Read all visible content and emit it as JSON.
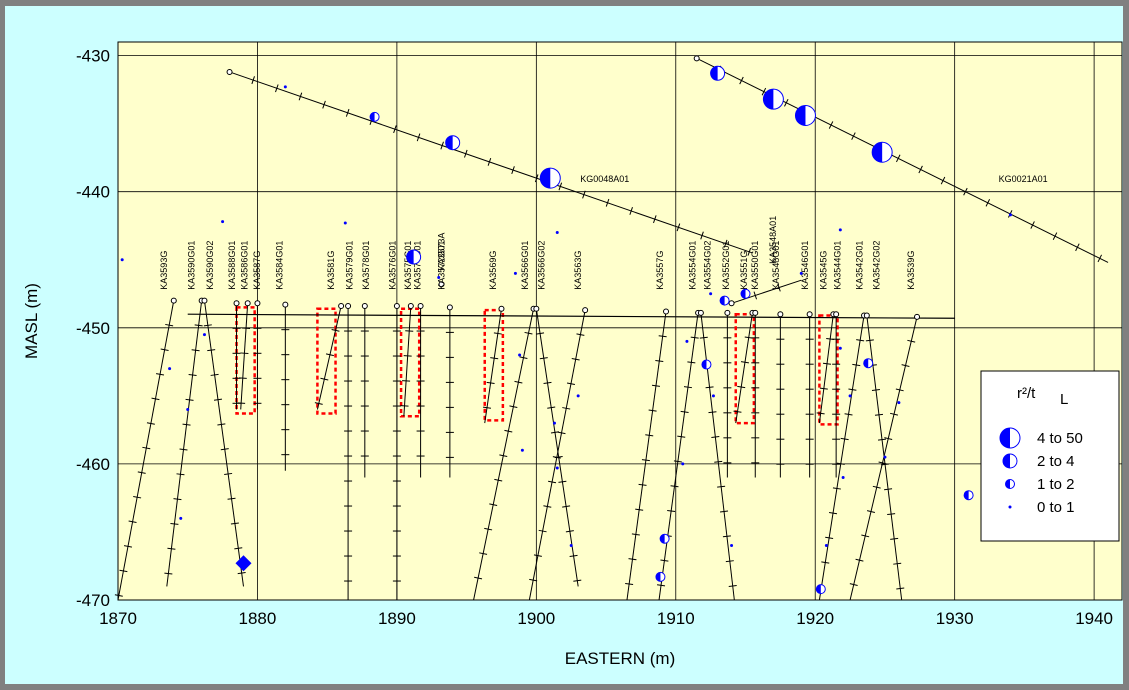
{
  "chart_data": {
    "type": "scatter",
    "title": "",
    "xlabel": "EASTERN (m)",
    "ylabel": "MASL (m)",
    "xlim": [
      1870,
      1942
    ],
    "ylim": [
      -470,
      -429
    ],
    "xticks": [
      1870,
      1880,
      1890,
      1900,
      1910,
      1920,
      1930,
      1940
    ],
    "yticks": [
      -430,
      -440,
      -450,
      -460,
      -470
    ],
    "grid": true,
    "plot_background": "#ffffcc",
    "frame_background": "#ccffff",
    "marker_color": "#0000ff",
    "legend": {
      "position": "right",
      "title": "r²/t",
      "title_unit": "L",
      "entries": [
        {
          "label": "4 to 50",
          "size": "largest"
        },
        {
          "label": "2 to 4",
          "size": "large"
        },
        {
          "label": "1 to 2",
          "size": "medium"
        },
        {
          "label": "0 to 1",
          "size": "small"
        }
      ]
    },
    "tunnel_lines": [
      {
        "start": [
          1875,
          -449
        ],
        "end": [
          1930,
          -449.3
        ]
      },
      {
        "start": [
          1880,
          -449
        ],
        "end": [
          1880,
          -449
        ]
      }
    ],
    "boreholes": [
      {
        "name": "KG0048A01",
        "start": [
          1878,
          -431.2
        ],
        "end": [
          1915.5,
          -444.5
        ],
        "label_at": [
          1901,
          -439
        ]
      },
      {
        "name": "KG0021A01",
        "start": [
          1911.5,
          -430.2
        ],
        "end": [
          1941,
          -445.2
        ],
        "label_at": [
          1931,
          -439
        ]
      },
      {
        "name": "KA3593G",
        "start": [
          1874,
          -448
        ],
        "end": [
          1870,
          -470
        ],
        "label_at": [
          1873.5,
          -447.2
        ]
      },
      {
        "name": "KA3590G01",
        "start": [
          1876,
          -448
        ],
        "end": [
          1873.5,
          -469
        ],
        "label_at": [
          1875.5,
          -447.2
        ]
      },
      {
        "name": "KA3590G02",
        "start": [
          1876.2,
          -448
        ],
        "end": [
          1879,
          -469
        ],
        "label_at": [
          1876.8,
          -447.2
        ]
      },
      {
        "name": "KA3588G01",
        "start": [
          1878.5,
          -448.2
        ],
        "end": [
          1878.5,
          -456
        ],
        "label_at": [
          1878.4,
          -447.2
        ]
      },
      {
        "name": "KA3586G01",
        "start": [
          1879.3,
          -448.2
        ],
        "end": [
          1878.8,
          -456
        ],
        "label_at": [
          1879.3,
          -447.2
        ]
      },
      {
        "name": "KA3587G",
        "start": [
          1880,
          -448.2
        ],
        "end": [
          1880,
          -456
        ],
        "label_at": [
          1880.2,
          -447.2
        ]
      },
      {
        "name": "KA3584G01",
        "start": [
          1882,
          -448.3
        ],
        "end": [
          1882,
          -460.5
        ],
        "label_at": [
          1881.8,
          -447.2
        ]
      },
      {
        "name": "KA3581G",
        "start": [
          1886,
          -448.4
        ],
        "end": [
          1884.3,
          -456
        ],
        "label_at": [
          1885.5,
          -447.2
        ]
      },
      {
        "name": "KA3579G01",
        "start": [
          1886.5,
          -448.4
        ],
        "end": [
          1886.5,
          -470
        ],
        "label_at": [
          1886.8,
          -447.2
        ]
      },
      {
        "name": "KA3578G01",
        "start": [
          1887.7,
          -448.4
        ],
        "end": [
          1887.7,
          -461
        ],
        "label_at": [
          1888,
          -447.2
        ]
      },
      {
        "name": "KA3576G01",
        "start": [
          1890,
          -448.4
        ],
        "end": [
          1890,
          -470
        ],
        "label_at": [
          1889.9,
          -447.2
        ]
      },
      {
        "name": "KA3575G01",
        "start": [
          1891,
          -448.4
        ],
        "end": [
          1890.5,
          -456.5
        ],
        "label_at": [
          1891,
          -447.2
        ]
      },
      {
        "name": "KA3574G01",
        "start": [
          1891.7,
          -448.4
        ],
        "end": [
          1891.7,
          -461
        ],
        "label_at": [
          1891.7,
          -447.2
        ]
      },
      {
        "name": "KA3573A",
        "start": [
          1893.2,
          -446.8
        ],
        "end": [
          1893.2,
          -446.8
        ],
        "label_at": [
          1893.4,
          -445.8
        ]
      },
      {
        "name": "KA3572G01",
        "start": [
          1893.8,
          -448.5
        ],
        "end": [
          1893.8,
          -461
        ],
        "label_at": [
          1893.4,
          -447.2
        ]
      },
      {
        "name": "KA3569G",
        "start": [
          1897.5,
          -448.6
        ],
        "end": [
          1896.3,
          -457
        ],
        "label_at": [
          1897.1,
          -447.2
        ]
      },
      {
        "name": "KA3566G01",
        "start": [
          1899.8,
          -448.6
        ],
        "end": [
          1895.5,
          -470
        ],
        "label_at": [
          1899.4,
          -447.2
        ]
      },
      {
        "name": "KA3566G02",
        "start": [
          1900,
          -448.6
        ],
        "end": [
          1903,
          -469
        ],
        "label_at": [
          1900.6,
          -447.2
        ]
      },
      {
        "name": "KA3563G",
        "start": [
          1903.5,
          -448.7
        ],
        "end": [
          1899.5,
          -470
        ],
        "label_at": [
          1903.2,
          -447.2
        ]
      },
      {
        "name": "KA3557G",
        "start": [
          1909.3,
          -448.8
        ],
        "end": [
          1906.5,
          -470
        ],
        "label_at": [
          1909.1,
          -447.2
        ]
      },
      {
        "name": "KA3554G01",
        "start": [
          1911.6,
          -448.9
        ],
        "end": [
          1908.8,
          -470
        ],
        "label_at": [
          1911.4,
          -447.2
        ]
      },
      {
        "name": "KA3554G02",
        "start": [
          1911.8,
          -448.9
        ],
        "end": [
          1914.2,
          -470
        ],
        "label_at": [
          1912.5,
          -447.2
        ]
      },
      {
        "name": "KA3552G01",
        "start": [
          1913.7,
          -448.9
        ],
        "end": [
          1913.7,
          -461
        ],
        "label_at": [
          1913.8,
          -447.2
        ]
      },
      {
        "name": "KA3551G",
        "start": [
          1915.5,
          -448.9
        ],
        "end": [
          1914.3,
          -457
        ],
        "label_at": [
          1915.1,
          -447.2
        ]
      },
      {
        "name": "KA3550G01",
        "start": [
          1915.7,
          -448.9
        ],
        "end": [
          1915.7,
          -461
        ],
        "label_at": [
          1915.9,
          -447.2
        ]
      },
      {
        "name": "KA3548A01",
        "start": [
          1914,
          -448.2
        ],
        "end": [
          1919,
          -446.5
        ],
        "label_at": [
          1917.2,
          -445.3
        ]
      },
      {
        "name": "KA3548G01",
        "start": [
          1917.5,
          -449
        ],
        "end": [
          1917.5,
          -461
        ],
        "label_at": [
          1917.4,
          -447.2
        ]
      },
      {
        "name": "KA3546G01",
        "start": [
          1919.6,
          -449
        ],
        "end": [
          1919.6,
          -461
        ],
        "label_at": [
          1919.5,
          -447.2
        ]
      },
      {
        "name": "KA3545G",
        "start": [
          1921.3,
          -449
        ],
        "end": [
          1920.3,
          -457
        ],
        "label_at": [
          1920.8,
          -447.2
        ]
      },
      {
        "name": "KA3544G01",
        "start": [
          1921.5,
          -449
        ],
        "end": [
          1921.5,
          -461
        ],
        "label_at": [
          1921.8,
          -447.2
        ]
      },
      {
        "name": "KA3542G01",
        "start": [
          1923.5,
          -449.1
        ],
        "end": [
          1920.3,
          -470
        ],
        "label_at": [
          1923.4,
          -447.2
        ]
      },
      {
        "name": "KA3542G02",
        "start": [
          1923.7,
          -449.1
        ],
        "end": [
          1926.2,
          -470
        ],
        "label_at": [
          1924.6,
          -447.2
        ]
      },
      {
        "name": "KA3539G",
        "start": [
          1927.3,
          -449.2
        ],
        "end": [
          1922.5,
          -470
        ],
        "label_at": [
          1927.1,
          -447.2
        ]
      }
    ],
    "highlight_boxes": [
      {
        "x": [
          1878.5,
          1879.8
        ],
        "y": [
          -448.5,
          -456.3
        ]
      },
      {
        "x": [
          1884.3,
          1885.6
        ],
        "y": [
          -448.6,
          -456.3
        ]
      },
      {
        "x": [
          1890.3,
          1891.6
        ],
        "y": [
          -448.6,
          -456.5
        ]
      },
      {
        "x": [
          1896.3,
          1897.6
        ],
        "y": [
          -448.7,
          -456.8
        ]
      },
      {
        "x": [
          1914.3,
          1915.6
        ],
        "y": [
          -449,
          -457
        ]
      },
      {
        "x": [
          1920.3,
          1921.6
        ],
        "y": [
          -449.1,
          -457.1
        ]
      }
    ],
    "points": [
      {
        "x": 1901,
        "y": -439,
        "class": "4 to 50"
      },
      {
        "x": 1894,
        "y": -436.4,
        "class": "2 to 4"
      },
      {
        "x": 1888.4,
        "y": -434.5,
        "class": "1 to 2"
      },
      {
        "x": 1882,
        "y": -432.3,
        "class": "0 to 1"
      },
      {
        "x": 1913,
        "y": -431.3,
        "class": "2 to 4"
      },
      {
        "x": 1917,
        "y": -433.2,
        "class": "4 to 50"
      },
      {
        "x": 1919.3,
        "y": -434.4,
        "class": "4 to 50"
      },
      {
        "x": 1924.8,
        "y": -437.1,
        "class": "4 to 50"
      },
      {
        "x": 1870.3,
        "y": -445,
        "class": "0 to 1"
      },
      {
        "x": 1877.5,
        "y": -442.2,
        "class": "0 to 1"
      },
      {
        "x": 1886.3,
        "y": -442.3,
        "class": "0 to 1"
      },
      {
        "x": 1891.2,
        "y": -444.8,
        "class": "2 to 4"
      },
      {
        "x": 1893,
        "y": -446.3,
        "class": "0 to 1"
      },
      {
        "x": 1898.5,
        "y": -446,
        "class": "0 to 1"
      },
      {
        "x": 1901.5,
        "y": -443,
        "class": "0 to 1"
      },
      {
        "x": 1921.8,
        "y": -442.8,
        "class": "0 to 1"
      },
      {
        "x": 1919,
        "y": -446,
        "class": "0 to 1"
      },
      {
        "x": 1912.5,
        "y": -447.5,
        "class": "0 to 1"
      },
      {
        "x": 1913.5,
        "y": -448,
        "class": "1 to 2"
      },
      {
        "x": 1915,
        "y": -447.5,
        "class": "1 to 2"
      },
      {
        "x": 1912.2,
        "y": -452.7,
        "class": "1 to 2"
      },
      {
        "x": 1923.8,
        "y": -452.6,
        "class": "1 to 2"
      },
      {
        "x": 1909.2,
        "y": -465.5,
        "class": "1 to 2"
      },
      {
        "x": 1908.9,
        "y": -468.3,
        "class": "1 to 2"
      },
      {
        "x": 1920.4,
        "y": -469.2,
        "class": "1 to 2"
      },
      {
        "x": 1931,
        "y": -462.3,
        "class": "1 to 2"
      },
      {
        "x": 1879,
        "y": -467.3,
        "class": "diamond"
      },
      {
        "x": 1876.2,
        "y": -450.5,
        "class": "0 to 1"
      },
      {
        "x": 1873.7,
        "y": -453,
        "class": "0 to 1"
      },
      {
        "x": 1875,
        "y": -456,
        "class": "0 to 1"
      },
      {
        "x": 1874.5,
        "y": -464,
        "class": "0 to 1"
      },
      {
        "x": 1899,
        "y": -459,
        "class": "0 to 1"
      },
      {
        "x": 1901.3,
        "y": -457,
        "class": "0 to 1"
      },
      {
        "x": 1901.5,
        "y": -460.3,
        "class": "0 to 1"
      },
      {
        "x": 1902.5,
        "y": -466,
        "class": "0 to 1"
      },
      {
        "x": 1903,
        "y": -455,
        "class": "0 to 1"
      },
      {
        "x": 1898.8,
        "y": -452,
        "class": "0 to 1"
      },
      {
        "x": 1910.8,
        "y": -451,
        "class": "0 to 1"
      },
      {
        "x": 1912.7,
        "y": -455,
        "class": "0 to 1"
      },
      {
        "x": 1910.5,
        "y": -460,
        "class": "0 to 1"
      },
      {
        "x": 1914,
        "y": -466,
        "class": "0 to 1"
      },
      {
        "x": 1920.8,
        "y": -466,
        "class": "0 to 1"
      },
      {
        "x": 1922,
        "y": -461,
        "class": "0 to 1"
      },
      {
        "x": 1922.5,
        "y": -455,
        "class": "0 to 1"
      },
      {
        "x": 1921.8,
        "y": -451.5,
        "class": "0 to 1"
      },
      {
        "x": 1925,
        "y": -459.5,
        "class": "0 to 1"
      },
      {
        "x": 1926,
        "y": -455.5,
        "class": "0 to 1"
      },
      {
        "x": 1934,
        "y": -441.7,
        "class": "0 to 1"
      }
    ]
  }
}
